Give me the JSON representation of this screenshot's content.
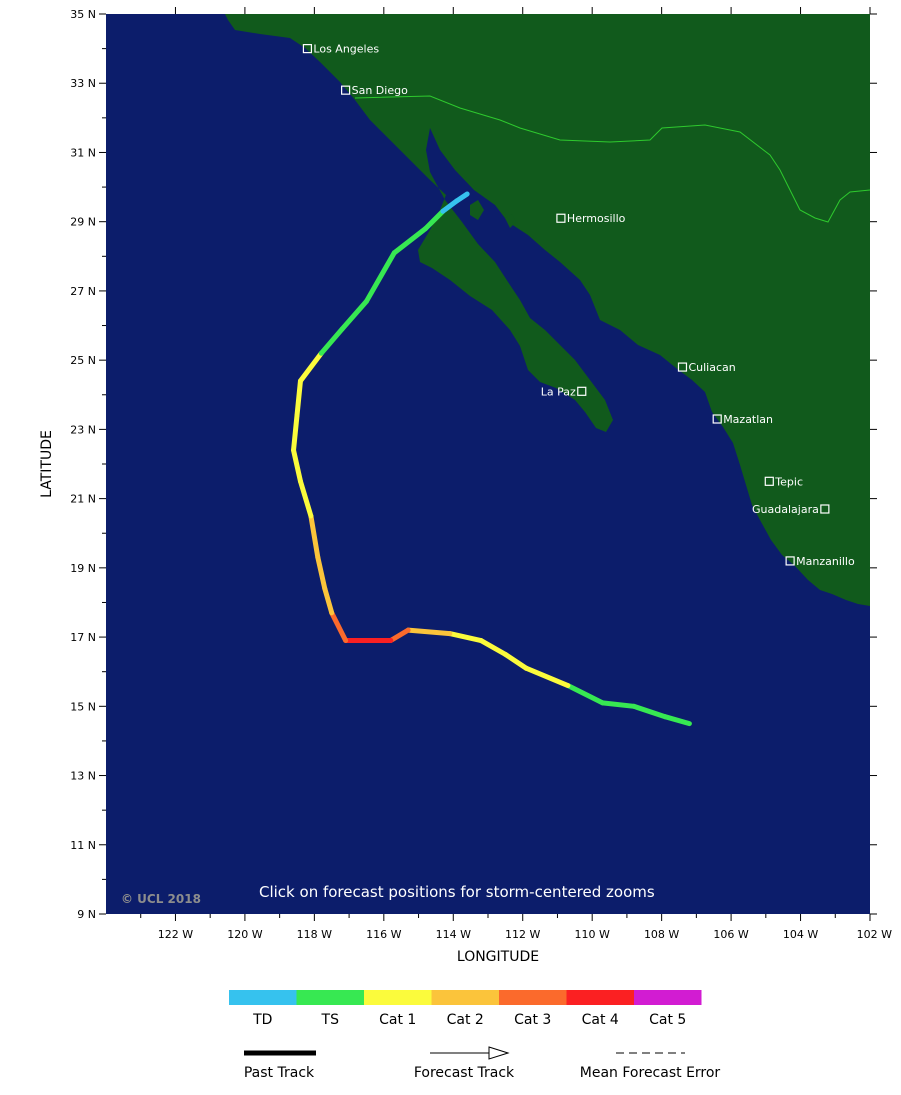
{
  "map": {
    "lat_min": 9,
    "lat_max": 35,
    "lon_west_max": 124,
    "lon_west_min": 102,
    "lat_ticks": [
      "9 N",
      "11 N",
      "13 N",
      "15 N",
      "17 N",
      "19 N",
      "21 N",
      "23 N",
      "25 N",
      "27 N",
      "29 N",
      "31 N",
      "33 N",
      "35 N"
    ],
    "lon_ticks": [
      "122 W",
      "120 W",
      "118 W",
      "116 W",
      "114 W",
      "112 W",
      "110 W",
      "108 W",
      "106 W",
      "104 W",
      "102 W"
    ],
    "xlabel": "LONGITUDE",
    "ylabel": "LATITUDE",
    "note": "Click on forecast positions for storm-centered zooms",
    "copyright": "© UCL 2018",
    "ocean_color": "#0c1d6b",
    "land_color": "#115a1c",
    "cities": [
      {
        "name": "Los Angeles",
        "lat": 34.0,
        "lon": 118.2
      },
      {
        "name": "San Diego",
        "lat": 32.8,
        "lon": 117.1
      },
      {
        "name": "Hermosillo",
        "lat": 29.1,
        "lon": 110.9
      },
      {
        "name": "Culiacan",
        "lat": 24.8,
        "lon": 107.4
      },
      {
        "name": "La Paz",
        "lat": 24.1,
        "lon": 110.3
      },
      {
        "name": "Mazatlan",
        "lat": 23.3,
        "lon": 106.4
      },
      {
        "name": "Tepic",
        "lat": 21.5,
        "lon": 104.9
      },
      {
        "name": "Guadalajara",
        "lat": 20.7,
        "lon": 103.3
      },
      {
        "name": "Manzanillo",
        "lat": 19.2,
        "lon": 104.3
      }
    ],
    "track": [
      {
        "lat": 14.5,
        "lon": 107.2,
        "cat": "TD"
      },
      {
        "lat": 14.7,
        "lon": 107.9,
        "cat": "TS"
      },
      {
        "lat": 15.0,
        "lon": 108.8,
        "cat": "TS"
      },
      {
        "lat": 15.1,
        "lon": 109.7,
        "cat": "TS"
      },
      {
        "lat": 15.6,
        "lon": 110.7,
        "cat": "TS"
      },
      {
        "lat": 16.1,
        "lon": 111.9,
        "cat": "Cat 1"
      },
      {
        "lat": 16.5,
        "lon": 112.5,
        "cat": "Cat 1"
      },
      {
        "lat": 16.9,
        "lon": 113.2,
        "cat": "Cat 1"
      },
      {
        "lat": 17.1,
        "lon": 114.1,
        "cat": "Cat 1"
      },
      {
        "lat": 17.2,
        "lon": 115.3,
        "cat": "Cat 2"
      },
      {
        "lat": 16.9,
        "lon": 115.8,
        "cat": "Cat 3"
      },
      {
        "lat": 16.9,
        "lon": 116.7,
        "cat": "Cat 4"
      },
      {
        "lat": 16.9,
        "lon": 117.1,
        "cat": "Cat 4"
      },
      {
        "lat": 17.7,
        "lon": 117.5,
        "cat": "Cat 3"
      },
      {
        "lat": 18.4,
        "lon": 117.7,
        "cat": "Cat 2"
      },
      {
        "lat": 19.3,
        "lon": 117.9,
        "cat": "Cat 2"
      },
      {
        "lat": 20.5,
        "lon": 118.1,
        "cat": "Cat 2"
      },
      {
        "lat": 21.5,
        "lon": 118.4,
        "cat": "Cat 1"
      },
      {
        "lat": 22.4,
        "lon": 118.6,
        "cat": "Cat 1"
      },
      {
        "lat": 23.4,
        "lon": 118.5,
        "cat": "Cat 1"
      },
      {
        "lat": 24.4,
        "lon": 118.4,
        "cat": "Cat 1"
      },
      {
        "lat": 25.2,
        "lon": 117.8,
        "cat": "Cat 1"
      },
      {
        "lat": 25.9,
        "lon": 117.2,
        "cat": "TS"
      },
      {
        "lat": 26.7,
        "lon": 116.5,
        "cat": "TS"
      },
      {
        "lat": 28.1,
        "lon": 115.7,
        "cat": "TS"
      },
      {
        "lat": 28.8,
        "lon": 114.8,
        "cat": "TS"
      },
      {
        "lat": 29.3,
        "lon": 114.3,
        "cat": "TS"
      },
      {
        "lat": 29.6,
        "lon": 113.9,
        "cat": "TD"
      },
      {
        "lat": 29.8,
        "lon": 113.6,
        "cat": "TD"
      }
    ]
  },
  "legend": {
    "categories": [
      {
        "label": "TD",
        "color": "#36c2ee"
      },
      {
        "label": "TS",
        "color": "#37e852"
      },
      {
        "label": "Cat 1",
        "color": "#fbfb3c"
      },
      {
        "label": "Cat 2",
        "color": "#fbc43b"
      },
      {
        "label": "Cat 3",
        "color": "#fb6a2c"
      },
      {
        "label": "Cat 4",
        "color": "#fb2022"
      },
      {
        "label": "Cat 5",
        "color": "#d21cd2"
      }
    ],
    "past_track": "Past Track",
    "forecast_track": "Forecast Track",
    "mean_error": "Mean Forecast Error"
  }
}
